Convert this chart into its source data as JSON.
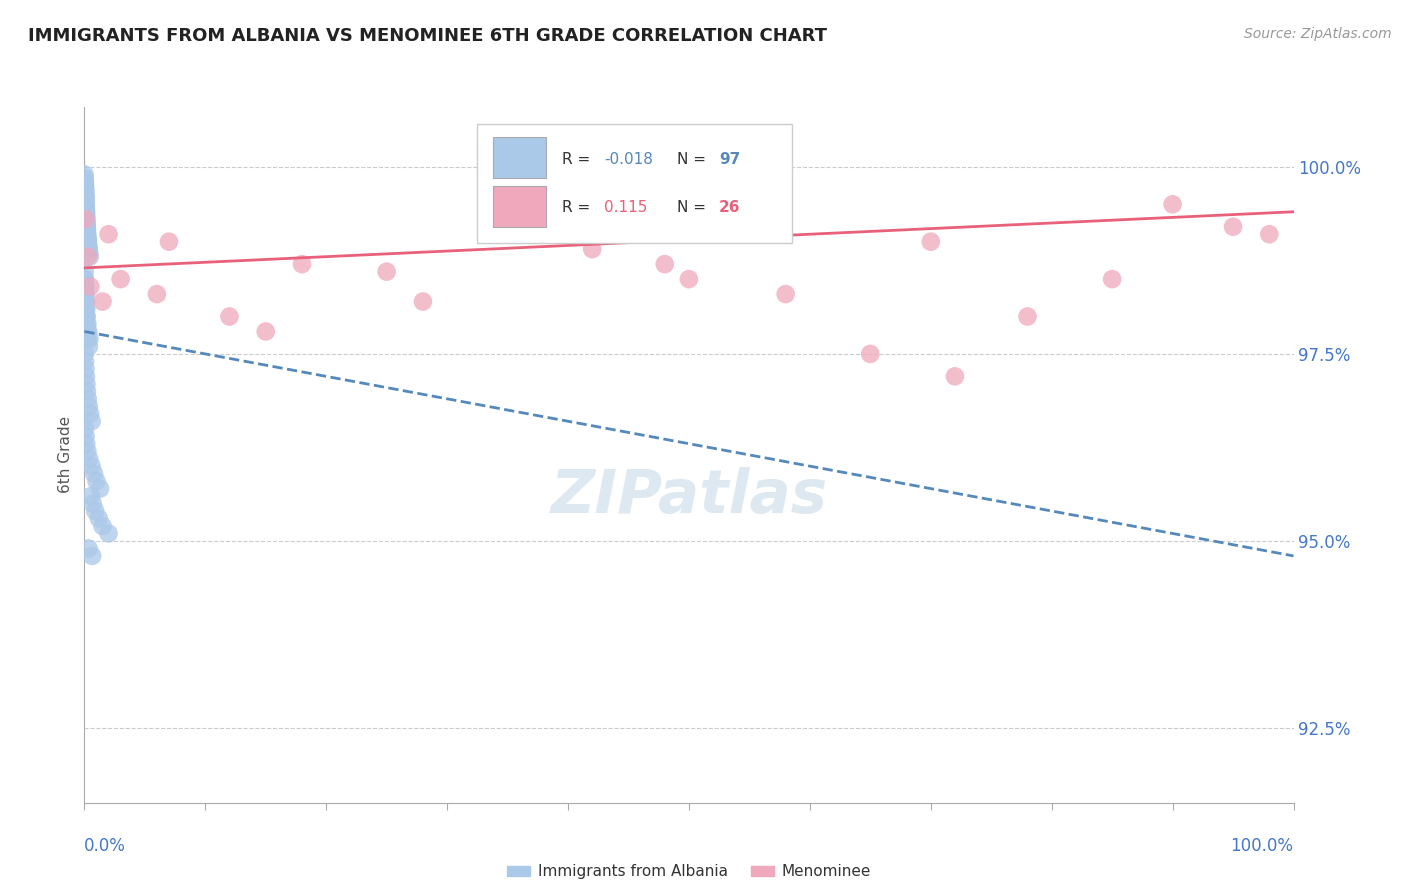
{
  "title": "IMMIGRANTS FROM ALBANIA VS MENOMINEE 6TH GRADE CORRELATION CHART",
  "source": "Source: ZipAtlas.com",
  "ylabel": "6th Grade",
  "ylabel_values": [
    92.5,
    95.0,
    97.5,
    100.0
  ],
  "xlim": [
    0.0,
    100.0
  ],
  "ylim": [
    91.5,
    100.8
  ],
  "blue_color": "#aac8e8",
  "pink_color": "#f0a8bc",
  "blue_line_color": "#5588bb",
  "pink_line_color": "#e8607a",
  "axis_label_color": "#4477cc",
  "watermark_color": "#dde8f0",
  "blue_trendline_y_start": 97.8,
  "blue_trendline_y_end": 94.8,
  "pink_trendline_y_start": 98.65,
  "pink_trendline_y_end": 99.4,
  "blue_x": [
    0.02,
    0.03,
    0.05,
    0.07,
    0.08,
    0.1,
    0.12,
    0.15,
    0.18,
    0.2,
    0.03,
    0.05,
    0.08,
    0.1,
    0.12,
    0.15,
    0.18,
    0.2,
    0.25,
    0.3,
    0.04,
    0.06,
    0.09,
    0.11,
    0.14,
    0.16,
    0.19,
    0.22,
    0.28,
    0.35,
    0.03,
    0.06,
    0.08,
    0.11,
    0.13,
    0.17,
    0.21,
    0.26,
    0.32,
    0.4,
    0.04,
    0.07,
    0.09,
    0.12,
    0.15,
    0.19,
    0.23,
    0.29,
    0.36,
    0.45,
    0.02,
    0.04,
    0.06,
    0.09,
    0.11,
    0.14,
    0.18,
    0.22,
    0.28,
    0.38,
    0.03,
    0.05,
    0.08,
    0.11,
    0.13,
    0.16,
    0.2,
    0.25,
    0.33,
    0.42,
    0.03,
    0.06,
    0.09,
    0.13,
    0.17,
    0.22,
    0.28,
    0.37,
    0.48,
    0.6,
    0.05,
    0.1,
    0.15,
    0.25,
    0.4,
    0.6,
    0.8,
    1.0,
    1.3,
    0.55,
    0.7,
    0.9,
    1.2,
    1.5,
    2.0,
    0.35,
    0.65
  ],
  "blue_y": [
    99.9,
    99.8,
    99.7,
    99.6,
    99.5,
    99.4,
    99.3,
    99.2,
    99.1,
    99.0,
    99.85,
    99.75,
    99.65,
    99.55,
    99.45,
    99.35,
    99.25,
    99.15,
    99.05,
    98.95,
    99.8,
    99.7,
    99.6,
    99.5,
    99.4,
    99.3,
    99.2,
    99.1,
    99.0,
    98.9,
    99.75,
    99.65,
    99.55,
    99.45,
    99.35,
    99.25,
    99.15,
    99.05,
    98.95,
    98.85,
    99.7,
    99.6,
    99.5,
    99.4,
    99.3,
    99.2,
    99.1,
    99.0,
    98.9,
    98.8,
    98.5,
    98.4,
    98.3,
    98.2,
    98.1,
    98.0,
    97.9,
    97.8,
    97.7,
    97.6,
    98.6,
    98.5,
    98.4,
    98.3,
    98.2,
    98.1,
    98.0,
    97.9,
    97.8,
    97.7,
    97.5,
    97.4,
    97.3,
    97.2,
    97.1,
    97.0,
    96.9,
    96.8,
    96.7,
    96.6,
    96.5,
    96.4,
    96.3,
    96.2,
    96.1,
    96.0,
    95.9,
    95.8,
    95.7,
    95.6,
    95.5,
    95.4,
    95.3,
    95.2,
    95.1,
    94.9,
    94.8
  ],
  "pink_x": [
    0.1,
    0.3,
    1.5,
    3.0,
    7.0,
    12.0,
    18.0,
    25.0,
    35.0,
    42.0,
    50.0,
    58.0,
    65.0,
    72.0,
    78.0,
    85.0,
    90.0,
    95.0,
    98.0,
    0.5,
    2.0,
    6.0,
    15.0,
    28.0,
    48.0,
    70.0
  ],
  "pink_y": [
    99.3,
    98.8,
    98.2,
    98.5,
    99.0,
    98.0,
    98.7,
    98.6,
    99.2,
    98.9,
    98.5,
    98.3,
    97.5,
    97.2,
    98.0,
    98.5,
    99.5,
    99.2,
    99.1,
    98.4,
    99.1,
    98.3,
    97.8,
    98.2,
    98.7,
    99.0
  ]
}
